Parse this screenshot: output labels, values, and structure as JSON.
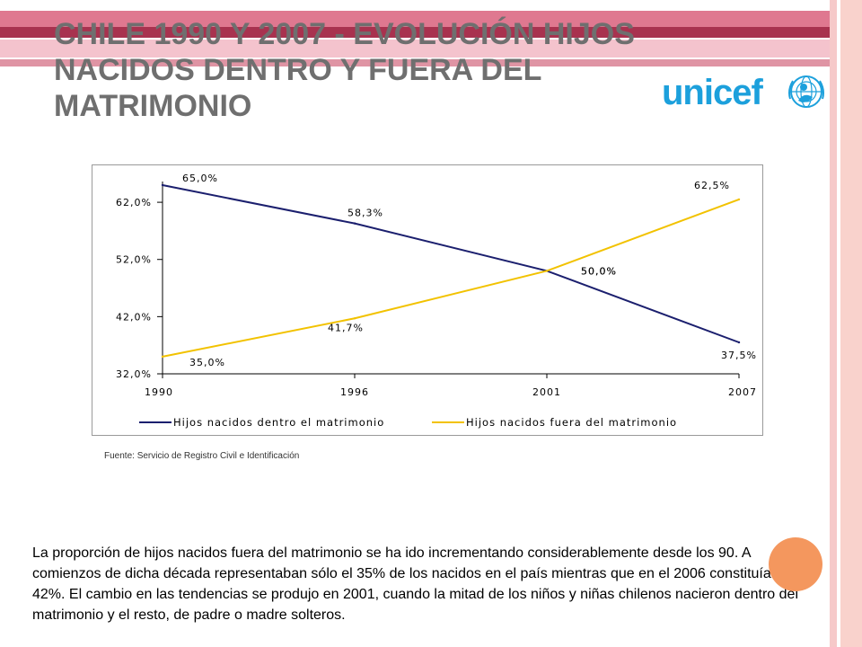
{
  "slide": {
    "title": "CHILE 1990 Y 2007 - EVOLUCIÓN HIJOS NACIDOS DENTRO Y FUERA DEL MATRIMONIO",
    "logo_text": "unicef",
    "source": "Fuente: Servicio de Registro Civil e Identificación",
    "paragraph": "La proporción de hijos nacidos fuera del matrimonio se ha ido incrementando considerablemente desde los 90. A comienzos de dicha década representaban sólo el 35% de los nacidos en el país mientras que en el 2006 constituían un 42%. El cambio en las tendencias se produjo en 2001, cuando la mitad de los niños y niñas chilenos nacieron dentro del matrimonio y el resto, de padre o madre solteros."
  },
  "colors": {
    "title": "#6f6f6f",
    "band_pink": "#d9607c",
    "band_dark": "#a8324f",
    "logo": "#1ca0dc",
    "accent_circle": "#f4975e"
  },
  "icons": {
    "logo_emblem": "unicef-globe-icon"
  },
  "chart_data": {
    "type": "line",
    "x": [
      "1990",
      "1996",
      "2001",
      "2007"
    ],
    "series": [
      {
        "name": "Hijos nacidos dentro el matrimonio",
        "values": [
          65.0,
          58.3,
          50.0,
          37.5
        ],
        "labels": [
          "65,0%",
          "58,3%",
          "50,0%",
          "37,5%"
        ],
        "color": "#1b1f6e"
      },
      {
        "name": "Hijos nacidos fuera del matrimonio",
        "values": [
          35.0,
          41.7,
          50.0,
          62.5
        ],
        "labels": [
          "35,0%",
          "41,7%",
          "50,0%",
          "62,5%"
        ],
        "color": "#f2c200"
      }
    ],
    "yticks": [
      32,
      42,
      52,
      62
    ],
    "yticklabels": [
      "32,0%",
      "42,0%",
      "52,0%",
      "62,0%"
    ],
    "ylim": [
      32,
      65
    ],
    "grid": false,
    "legend_position": "bottom"
  }
}
